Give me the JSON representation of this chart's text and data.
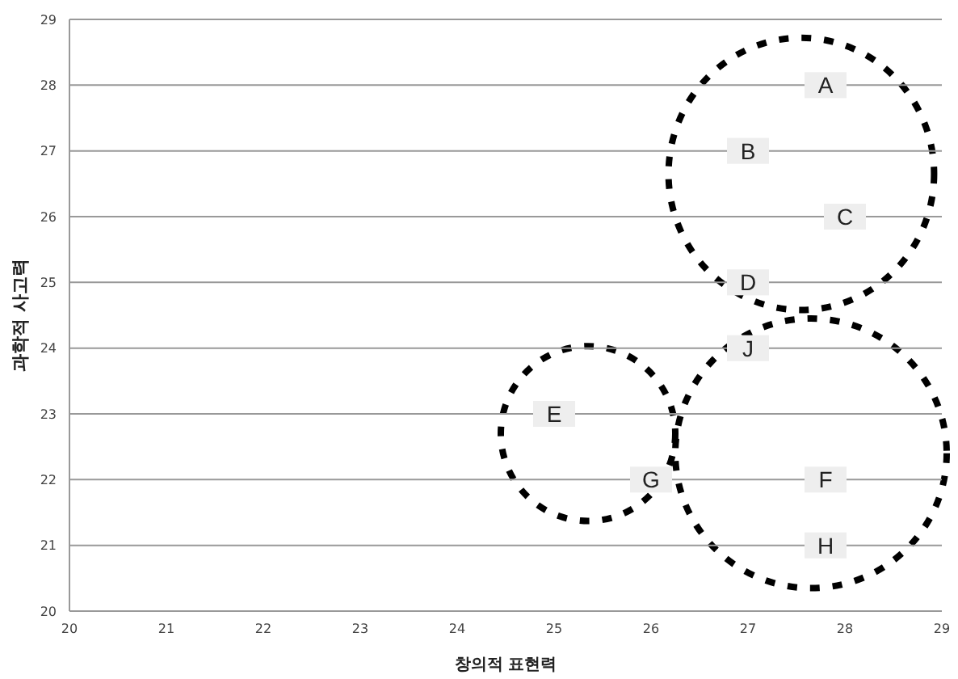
{
  "chart_data": {
    "type": "scatter",
    "xlabel": "창의적 표현력",
    "ylabel": "과학적 사고력",
    "xlim": [
      20,
      29
    ],
    "ylim": [
      20,
      29
    ],
    "xticks": [
      20,
      21,
      22,
      23,
      24,
      25,
      26,
      27,
      28,
      29
    ],
    "yticks": [
      20,
      21,
      22,
      23,
      24,
      25,
      26,
      27,
      28,
      29
    ],
    "grid": "y",
    "marker": "square",
    "legend": false,
    "series": [
      {
        "name": "A",
        "color": "#eeeeee",
        "x": [
          27.8
        ],
        "values": [
          28
        ]
      },
      {
        "name": "B",
        "color": "#eeeeee",
        "x": [
          27
        ],
        "values": [
          27
        ]
      },
      {
        "name": "C",
        "color": "#eeeeee",
        "x": [
          28
        ],
        "values": [
          26
        ]
      },
      {
        "name": "D",
        "color": "#eeeeee",
        "x": [
          27
        ],
        "values": [
          25
        ]
      },
      {
        "name": "E",
        "color": "#eeeeee",
        "x": [
          25
        ],
        "values": [
          23
        ]
      },
      {
        "name": "F",
        "color": "#eeeeee",
        "x": [
          27.8
        ],
        "values": [
          22
        ]
      },
      {
        "name": "G",
        "color": "#eeeeee",
        "x": [
          26
        ],
        "values": [
          22
        ]
      },
      {
        "name": "H",
        "color": "#eeeeee",
        "x": [
          27.8
        ],
        "values": [
          21
        ]
      },
      {
        "name": "J",
        "color": "#eeeeee",
        "x": [
          27
        ],
        "values": [
          24
        ]
      }
    ]
  }
}
